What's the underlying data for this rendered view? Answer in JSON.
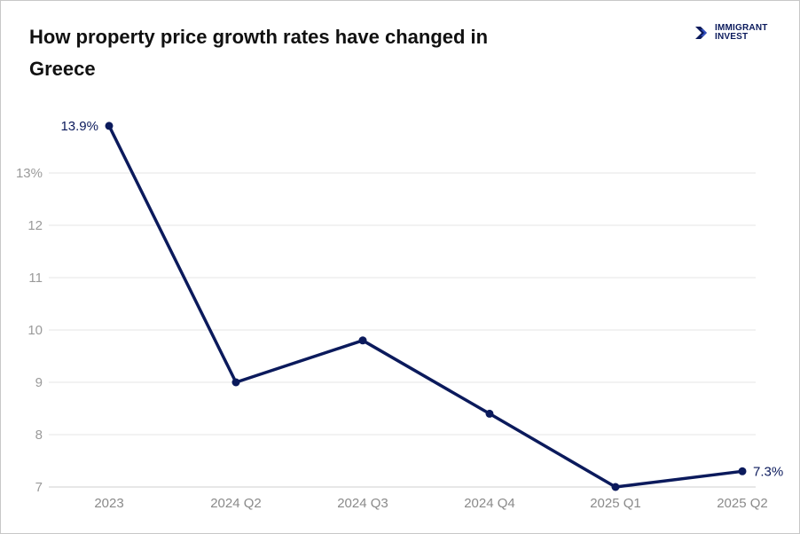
{
  "logo": {
    "line1": "IMMIGRANT",
    "line2": "INVEST"
  },
  "chart_data": {
    "type": "line",
    "title": "How property price growth rates have changed in Greece",
    "categories": [
      "2023",
      "2024 Q2",
      "2024 Q3",
      "2024 Q4",
      "2025 Q1",
      "2025 Q2"
    ],
    "series": [
      {
        "values": [
          13.9,
          9.0,
          9.8,
          8.4,
          7.0,
          7.3
        ]
      }
    ],
    "data_labels": [
      {
        "index": 0,
        "text": "13.9%"
      },
      {
        "index": 5,
        "text": "7.3%"
      }
    ],
    "yticks": [
      {
        "value": 7,
        "label": "7"
      },
      {
        "value": 8,
        "label": "8"
      },
      {
        "value": 9,
        "label": "9"
      },
      {
        "value": 10,
        "label": "10"
      },
      {
        "value": 11,
        "label": "11"
      },
      {
        "value": 12,
        "label": "12"
      },
      {
        "value": 13,
        "label": "13%"
      }
    ],
    "ylim": [
      7,
      13.9
    ],
    "grid": true,
    "line_color": "#0b1a5c",
    "xlabel": "",
    "ylabel": ""
  }
}
